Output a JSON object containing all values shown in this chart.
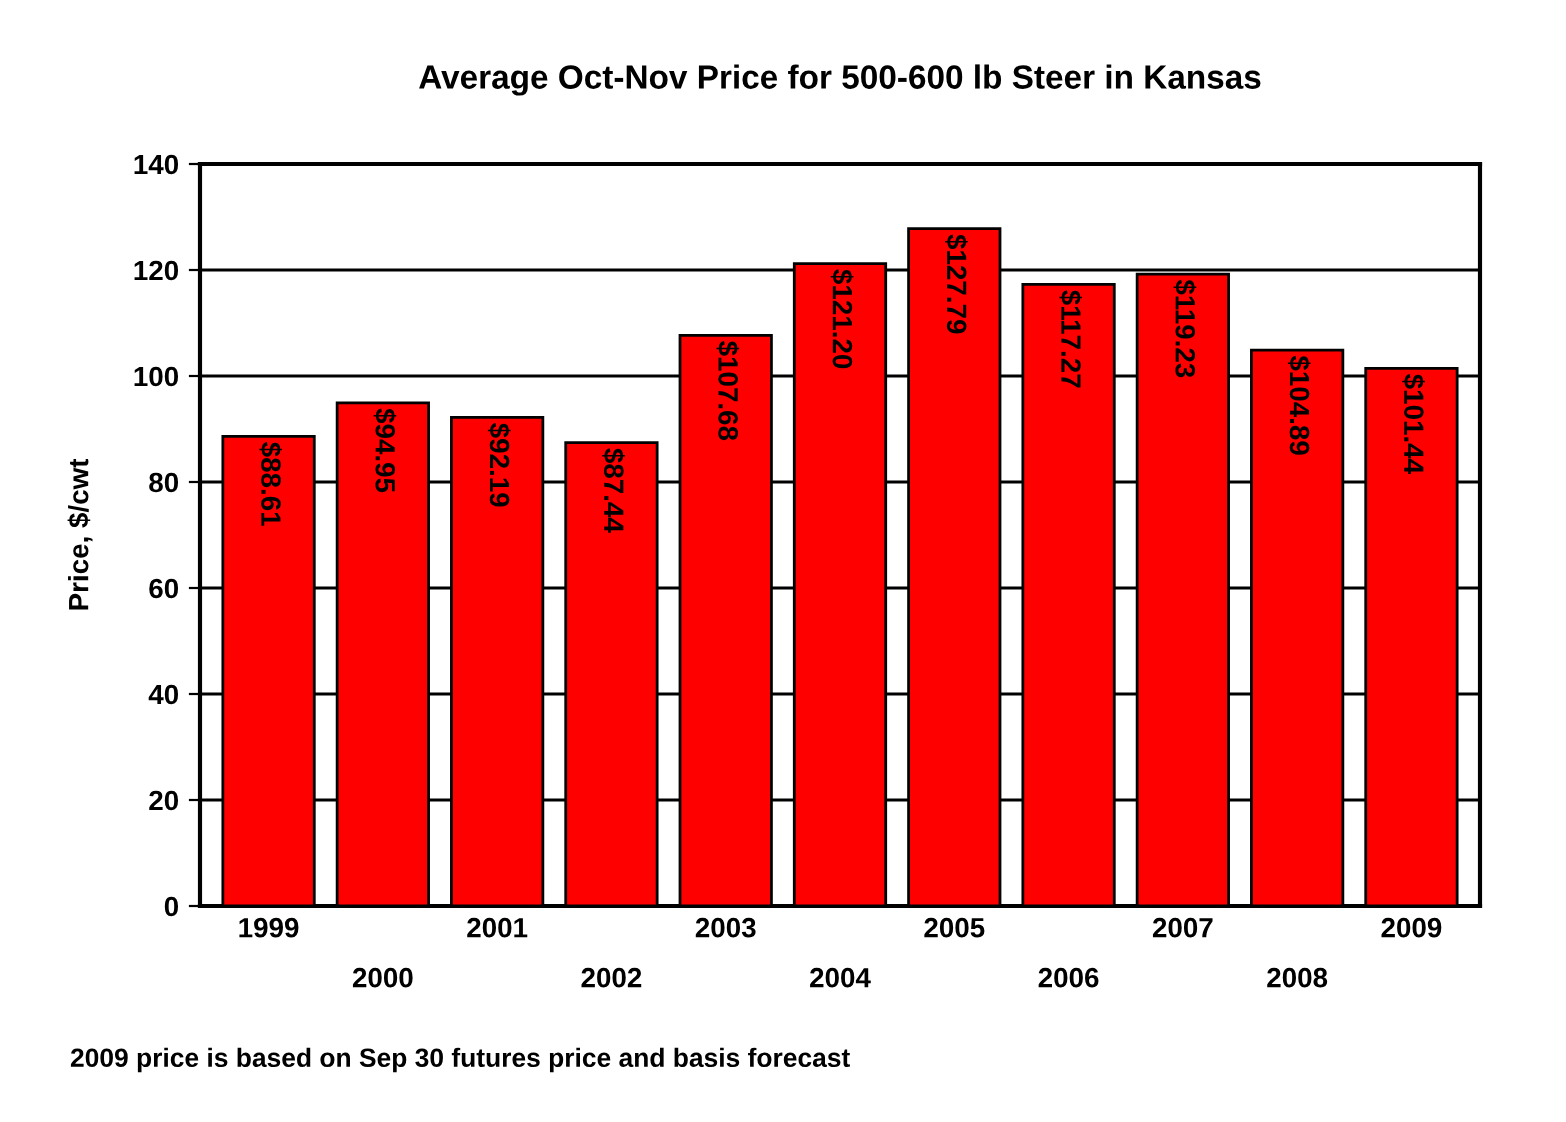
{
  "chart_data": {
    "type": "bar",
    "title": "Average Oct-Nov Price for 500-600 lb Steer in Kansas",
    "ylabel": "Price, $/cwt",
    "categories": [
      "1999",
      "2000",
      "2001",
      "2002",
      "2003",
      "2004",
      "2005",
      "2006",
      "2007",
      "2008",
      "2009"
    ],
    "values": [
      88.61,
      94.95,
      92.19,
      87.44,
      107.68,
      121.2,
      127.79,
      117.27,
      119.23,
      104.89,
      101.44
    ],
    "value_labels": [
      "$88.61",
      "$94.95",
      "$92.19",
      "$87.44",
      "$107.68",
      "$121.20",
      "$127.79",
      "$117.27",
      "$119.23",
      "$104.89",
      "$101.44"
    ],
    "color": "#ff0000",
    "ylim": [
      0,
      140
    ],
    "yticks": [
      0,
      20,
      40,
      60,
      80,
      100,
      120,
      140
    ],
    "grid": "y",
    "legend": false,
    "annotations": [
      "2009 price is based on Sep 30 futures price and basis forecast"
    ]
  }
}
